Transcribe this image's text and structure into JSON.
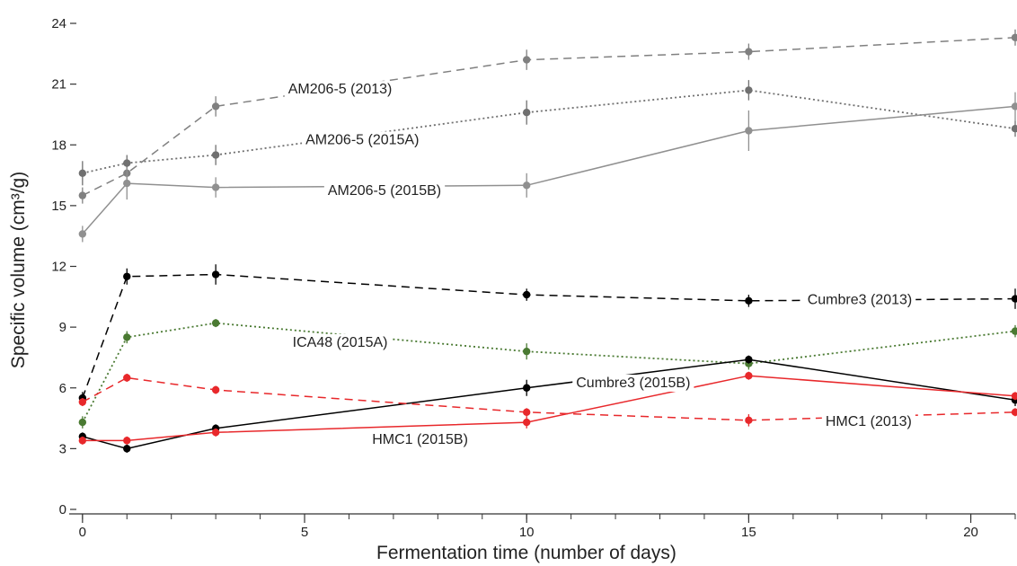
{
  "chart_data": {
    "type": "line",
    "xlabel": "Fermentation time (number of days)",
    "ylabel": "Specific volume (cm³/g)",
    "xlim": [
      -0.3,
      21
    ],
    "ylim": [
      0,
      24
    ],
    "x_ticks": [
      0,
      5,
      10,
      15,
      20
    ],
    "x_tick_labels": [
      "0",
      "5",
      "10",
      "15",
      "20"
    ],
    "y_ticks": [
      0,
      3,
      6,
      9,
      12,
      15,
      18,
      21,
      24
    ],
    "y_tick_labels": [
      "0",
      "3",
      "6",
      "9",
      "12",
      "15",
      "18",
      "21",
      "24"
    ],
    "x": [
      0,
      1,
      3,
      10,
      15,
      21
    ],
    "series": [
      {
        "name": "AM206-5 (2013)",
        "color": "#808080",
        "dash": "dashed",
        "values": [
          15.5,
          16.6,
          19.9,
          22.2,
          22.6,
          23.3
        ],
        "errors": [
          0.4,
          0.4,
          0.5,
          0.5,
          0.4,
          0.4
        ]
      },
      {
        "name": "AM206-5 (2015A)",
        "color": "#707070",
        "dash": "dotted",
        "values": [
          16.6,
          17.1,
          17.5,
          19.6,
          20.7,
          18.8
        ],
        "errors": [
          0.6,
          0.4,
          0.5,
          0.6,
          0.5,
          0.4
        ]
      },
      {
        "name": "AM206-5 (2015B)",
        "color": "#909090",
        "dash": "solid",
        "values": [
          13.6,
          16.1,
          15.9,
          16.0,
          18.7,
          19.9
        ],
        "errors": [
          0.4,
          0.8,
          0.5,
          0.6,
          1.0,
          0.7
        ]
      },
      {
        "name": "Cumbre3 (2013)",
        "color": "#000000",
        "dash": "dashed",
        "values": [
          5.5,
          11.5,
          11.6,
          10.6,
          10.3,
          10.4
        ],
        "errors": [
          0.3,
          0.4,
          0.5,
          0.3,
          0.3,
          0.5
        ]
      },
      {
        "name": "ICA48 (2015A)",
        "color": "#4a7a32",
        "dash": "dotted",
        "values": [
          4.3,
          8.5,
          9.2,
          7.8,
          7.2,
          8.8
        ],
        "errors": [
          0.3,
          0.3,
          0.2,
          0.4,
          0.3,
          0.3
        ]
      },
      {
        "name": "Cumbre3 (2015B)",
        "color": "#000000",
        "dash": "solid",
        "values": [
          3.6,
          3.0,
          4.0,
          6.0,
          7.4,
          5.4
        ],
        "errors": [
          0.2,
          0.2,
          0.2,
          0.4,
          0.2,
          0.3
        ]
      },
      {
        "name": "HMC1 (2013)",
        "color": "#e8282b",
        "dash": "dashed",
        "values": [
          5.3,
          6.5,
          5.9,
          4.8,
          4.4,
          4.8
        ],
        "errors": [
          0.2,
          0.2,
          0.2,
          0.2,
          0.3,
          0.2
        ]
      },
      {
        "name": "HMC1 (2015B)",
        "color": "#e8282b",
        "dash": "solid",
        "values": [
          3.4,
          3.4,
          3.8,
          4.3,
          6.6,
          5.6
        ],
        "errors": [
          0.2,
          0.2,
          0.2,
          0.3,
          0.2,
          0.2
        ]
      }
    ],
    "annotations": [
      {
        "series": "AM206-5 (2013)",
        "text": "AM206-5 (2013)",
        "at": [
          5.8,
          20.8
        ]
      },
      {
        "series": "AM206-5 (2015A)",
        "text": "AM206-5 (2015A)",
        "at": [
          6.3,
          18.3
        ]
      },
      {
        "series": "AM206-5 (2015B)",
        "text": "AM206-5 (2015B)",
        "at": [
          6.8,
          15.8
        ]
      },
      {
        "series": "Cumbre3 (2013)",
        "text": "Cumbre3 (2013)",
        "at": [
          17.5,
          10.4
        ]
      },
      {
        "series": "ICA48 (2015A)",
        "text": "ICA48 (2015A)",
        "at": [
          5.8,
          8.3
        ]
      },
      {
        "series": "Cumbre3 (2015B)",
        "text": "Cumbre3 (2015B)",
        "at": [
          12.4,
          6.3
        ]
      },
      {
        "series": "HMC1 (2013)",
        "text": "HMC1 (2013)",
        "at": [
          17.7,
          4.4
        ]
      },
      {
        "series": "HMC1 (2015B)",
        "text": "HMC1 (2015B)",
        "at": [
          7.6,
          3.5
        ]
      }
    ],
    "grid": false,
    "legend": "none"
  }
}
